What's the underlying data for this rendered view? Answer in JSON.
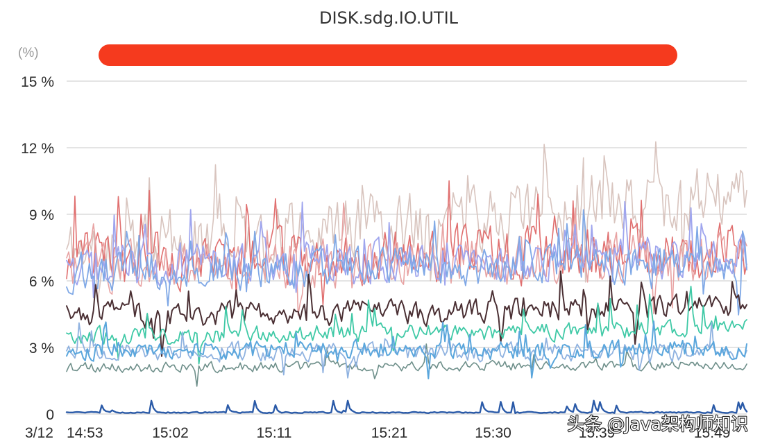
{
  "chart_data": {
    "type": "line",
    "title": "DISK.sdg.IO.UTIL",
    "unit_label": "(%)",
    "date_label": "3/12",
    "ylim": [
      0,
      15
    ],
    "y_ticks": [
      {
        "value": 0,
        "label": "0"
      },
      {
        "value": 3,
        "label": "3 %"
      },
      {
        "value": 6,
        "label": "6 %"
      },
      {
        "value": 9,
        "label": "9 %"
      },
      {
        "value": 12,
        "label": "12 %"
      },
      {
        "value": 15,
        "label": "15 %"
      }
    ],
    "x_start_minute": 893,
    "x_end_minute": 952,
    "x_ticks": [
      {
        "minute": 893,
        "label": "14:53"
      },
      {
        "minute": 902,
        "label": "15:02"
      },
      {
        "minute": 911,
        "label": "15:11"
      },
      {
        "minute": 921,
        "label": "15:21"
      },
      {
        "minute": 930,
        "label": "15:30"
      },
      {
        "minute": 939,
        "label": "15:39"
      },
      {
        "minute": 949,
        "label": "15:49"
      }
    ],
    "grid": true,
    "legend": "top (redacted)",
    "legend_color": "#f53a1e",
    "points_per_series": 330,
    "series": [
      {
        "color": "#d8c4be",
        "base": 7.4,
        "trend": 2.4,
        "amplitude": 2.0,
        "spike_prob": 0.06,
        "spike_size": 3.0,
        "floor": 5.0,
        "stroke_width": 1.6,
        "seed": 11
      },
      {
        "color": "#e06f6f",
        "base": 7.0,
        "trend": 0.3,
        "amplitude": 1.7,
        "spike_prob": 0.04,
        "spike_size": 2.5,
        "floor": 1.3,
        "stroke_width": 1.6,
        "seed": 23
      },
      {
        "color": "#e8a3a3",
        "base": 6.7,
        "trend": 0.3,
        "amplitude": 1.5,
        "spike_prob": 0.04,
        "spike_size": 2.0,
        "floor": 3.0,
        "stroke_width": 1.6,
        "seed": 31
      },
      {
        "color": "#9fa5ee",
        "base": 6.7,
        "trend": 0.4,
        "amplitude": 1.3,
        "spike_prob": 0.05,
        "spike_size": 2.2,
        "floor": 3.6,
        "stroke_width": 1.8,
        "seed": 47
      },
      {
        "color": "#7fa8e6",
        "base": 6.4,
        "trend": 0.4,
        "amplitude": 1.2,
        "spike_prob": 0.04,
        "spike_size": 2.0,
        "floor": 3.4,
        "stroke_width": 1.8,
        "seed": 53
      },
      {
        "color": "#4a2f33",
        "base": 4.4,
        "trend": 0.4,
        "amplitude": 0.75,
        "spike_prob": 0.05,
        "spike_size": 1.6,
        "floor": 2.6,
        "stroke_width": 2.0,
        "seed": 67
      },
      {
        "color": "#6e8f8a",
        "base": 2.1,
        "trend": 0.1,
        "amplitude": 0.3,
        "spike_prob": 0.03,
        "spike_size": 0.8,
        "floor": 1.0,
        "stroke_width": 1.6,
        "seed": 79
      },
      {
        "color": "#3fc9a6",
        "base": 3.5,
        "trend": 0.3,
        "amplitude": 0.55,
        "spike_prob": 0.05,
        "spike_size": 1.5,
        "floor": 2.0,
        "stroke_width": 1.8,
        "seed": 83
      },
      {
        "color": "#8fb2e0",
        "base": 2.8,
        "trend": 0.0,
        "amplitude": 0.55,
        "spike_prob": 0.04,
        "spike_size": 1.0,
        "floor": 1.5,
        "stroke_width": 1.8,
        "seed": 97
      },
      {
        "color": "#5aa6dc",
        "base": 2.9,
        "trend": 0.0,
        "amplitude": 0.6,
        "spike_prob": 0.05,
        "spike_size": 1.2,
        "floor": 1.4,
        "stroke_width": 2.0,
        "seed": 101
      },
      {
        "color": "#2a5aa8",
        "base": 0.07,
        "trend": 0.0,
        "amplitude": 0.04,
        "spike_prob": 0.07,
        "spike_size": 0.55,
        "floor": 0.0,
        "stroke_width": 2.4,
        "seed": 113
      }
    ]
  },
  "watermark": "头条 @Java架构师知识"
}
